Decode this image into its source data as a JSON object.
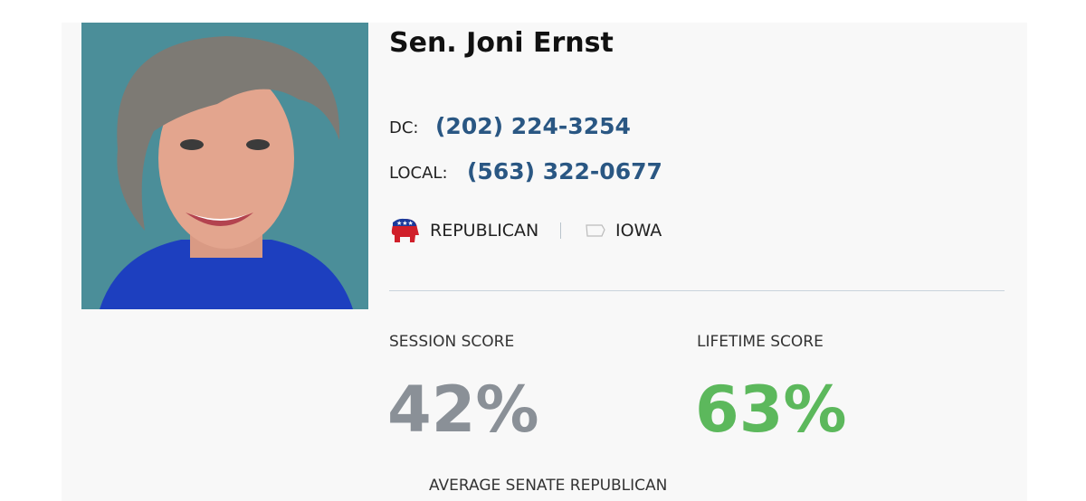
{
  "profile": {
    "name": "Sen. Joni Ernst",
    "contacts": [
      {
        "label": "DC:",
        "phone": "(202) 224-3254"
      },
      {
        "label": "LOCAL:",
        "phone": "(563) 322-0677"
      }
    ],
    "party": "REPUBLICAN",
    "state": "IOWA",
    "scores": [
      {
        "label": "SESSION SCORE",
        "value": "42%",
        "color": "#8a9097"
      },
      {
        "label": "LIFETIME SCORE",
        "value": "63%",
        "color": "#5cb85c"
      }
    ],
    "footer": "AVERAGE SENATE REPUBLICAN"
  }
}
